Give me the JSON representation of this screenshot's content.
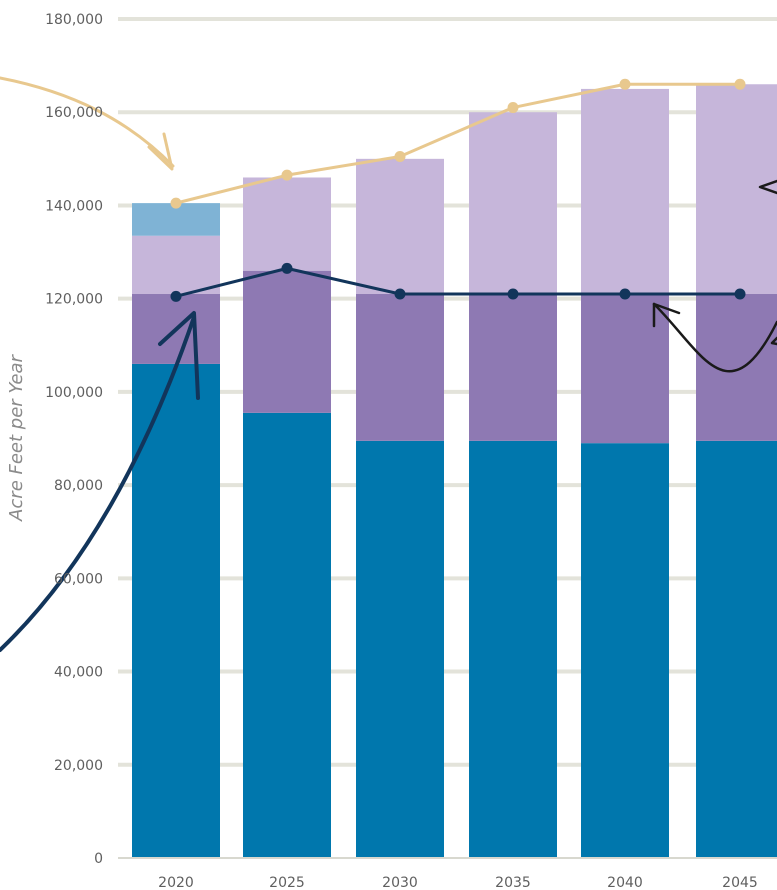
{
  "chart_data": {
    "type": "bar",
    "title": "",
    "subtitle": "",
    "xlabel": "",
    "ylabel": "Acre Feet per Year",
    "categories": [
      "2020",
      "2025",
      "2030",
      "2035",
      "2040",
      "2045"
    ],
    "ylim": [
      0,
      180000
    ],
    "yticks": [
      0,
      20000,
      40000,
      60000,
      80000,
      100000,
      120000,
      140000,
      160000,
      180000
    ],
    "ytick_labels": [
      "0",
      "20,000",
      "40,000",
      "60,000",
      "80,000",
      "100,000",
      "120,000",
      "140,000",
      "160,000",
      "180,000"
    ],
    "grid": true,
    "stacked": true,
    "bar_series": [
      {
        "values": [
          106000,
          95500,
          89500,
          89500,
          89000,
          89500
        ],
        "color": "#0077AD"
      },
      {
        "values": [
          15000,
          30500,
          31500,
          31500,
          32000,
          31500
        ],
        "color": "#8E79B3"
      },
      {
        "values": [
          12500,
          20000,
          29000,
          39000,
          44000,
          45000
        ],
        "color": "#C6B6DA"
      },
      {
        "values": [
          7000,
          0,
          0,
          0,
          0,
          0
        ],
        "color": "#7FB3D5"
      }
    ],
    "line_series": [
      {
        "values": [
          140500,
          146500,
          150500,
          161000,
          166000,
          166000
        ],
        "color": "#E8C88E"
      },
      {
        "values": [
          120500,
          126500,
          121000,
          121000,
          121000,
          121000
        ],
        "color": "#12355B"
      }
    ],
    "annotation_colors": {
      "gold_arrow": "#E8C88E",
      "navy_arrow": "#12355B",
      "black_arrow": "#1A1A1A"
    }
  }
}
